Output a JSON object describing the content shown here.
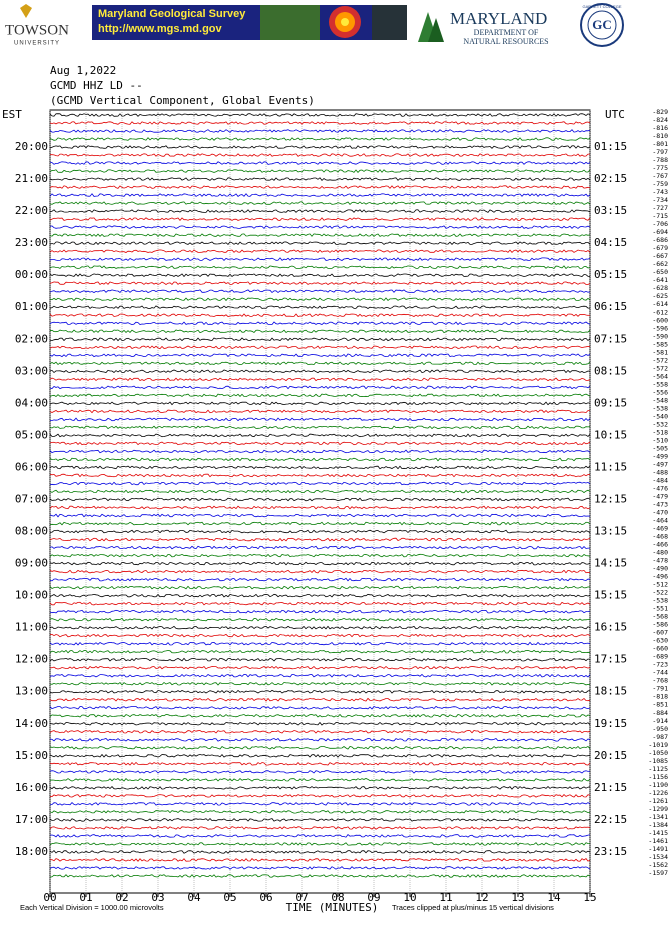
{
  "header": {
    "towson": "TOWSON",
    "towson_sub": "UNIVERSITY",
    "mgs_title": "Maryland Geological Survey",
    "mgs_url": "http://www.mgs.md.gov",
    "dnr_title": "MARYLAND",
    "dnr_sub1": "DEPARTMENT OF",
    "dnr_sub2": "NATURAL RESOURCES",
    "gc_logo": "GC",
    "gc_ring": "GARRETT COLLEGE"
  },
  "chart_data": {
    "type": "helicorder",
    "title": "Aug 1,2022",
    "subtitle": "GCMD HHZ LD --",
    "description": "(GCMD Vertical Component, Global Events)",
    "left_axis_label": "EST",
    "right_axis_label": "UTC",
    "left_labels": [
      "20:00",
      "21:00",
      "22:00",
      "23:00",
      "00:00",
      "01:00",
      "02:00",
      "03:00",
      "04:00",
      "05:00",
      "06:00",
      "07:00",
      "08:00",
      "09:00",
      "10:00",
      "11:00",
      "12:00",
      "13:00",
      "14:00",
      "15:00",
      "16:00",
      "17:00",
      "18:00"
    ],
    "right_labels": [
      "01:15",
      "02:15",
      "03:15",
      "04:15",
      "05:15",
      "06:15",
      "07:15",
      "08:15",
      "09:15",
      "10:15",
      "11:15",
      "12:15",
      "13:15",
      "14:15",
      "15:15",
      "16:15",
      "17:15",
      "18:15",
      "19:15",
      "20:15",
      "21:15",
      "22:15",
      "23:15"
    ],
    "trace_offsets": [
      -829,
      -824,
      -816,
      -810,
      -801,
      -797,
      -788,
      -775,
      -767,
      -759,
      -743,
      -734,
      -727,
      -715,
      -706,
      -694,
      -686,
      -679,
      -667,
      -662,
      -650,
      -641,
      -628,
      -625,
      -614,
      -612,
      -600,
      -596,
      -590,
      -585,
      -581,
      -572,
      -572,
      -564,
      -558,
      -556,
      -548,
      -538,
      -540,
      -532,
      -518,
      -510,
      -505,
      -499,
      -497,
      -488,
      -484,
      -476,
      -479,
      -473,
      -470,
      -464,
      -469,
      -468,
      -466,
      -480,
      -478,
      -490,
      -496,
      -512,
      -522,
      -538,
      -551,
      -568,
      -586,
      -607,
      -630,
      -660,
      -689,
      -723,
      -744,
      -768,
      -791,
      -818,
      -851,
      -884,
      -914,
      -950,
      -987,
      -1019,
      -1050,
      -1085,
      -1125,
      -1156,
      -1190,
      -1226,
      -1261,
      -1299,
      -1341,
      -1384,
      -1415,
      -1461,
      -1491,
      -1534,
      -1562,
      -1597
    ],
    "trace_colors": [
      "#000000",
      "#e00000",
      "#0000e0",
      "#007a00"
    ],
    "xlim": [
      0,
      15
    ],
    "xticks": [
      {
        "value": 0,
        "label": "00"
      },
      {
        "value": 1,
        "label": "01"
      },
      {
        "value": 2,
        "label": "02"
      },
      {
        "value": 3,
        "label": "03"
      },
      {
        "value": 4,
        "label": "04"
      },
      {
        "value": 5,
        "label": "05"
      },
      {
        "value": 6,
        "label": "06"
      },
      {
        "value": 7,
        "label": "07"
      },
      {
        "value": 8,
        "label": "08"
      },
      {
        "value": 9,
        "label": "09"
      },
      {
        "value": 10,
        "label": "10"
      },
      {
        "value": 11,
        "label": "11"
      },
      {
        "value": 12,
        "label": "12"
      },
      {
        "value": 13,
        "label": "13"
      },
      {
        "value": 14,
        "label": "14"
      },
      {
        "value": 15,
        "label": "15"
      }
    ],
    "xlabel": "TIME (MINUTES)",
    "scale_note": "Each Vertical Division = 1000.00 microvolts",
    "clip_note": "Traces clipped at plus/minus 15 vertical divisions",
    "grid": true
  }
}
